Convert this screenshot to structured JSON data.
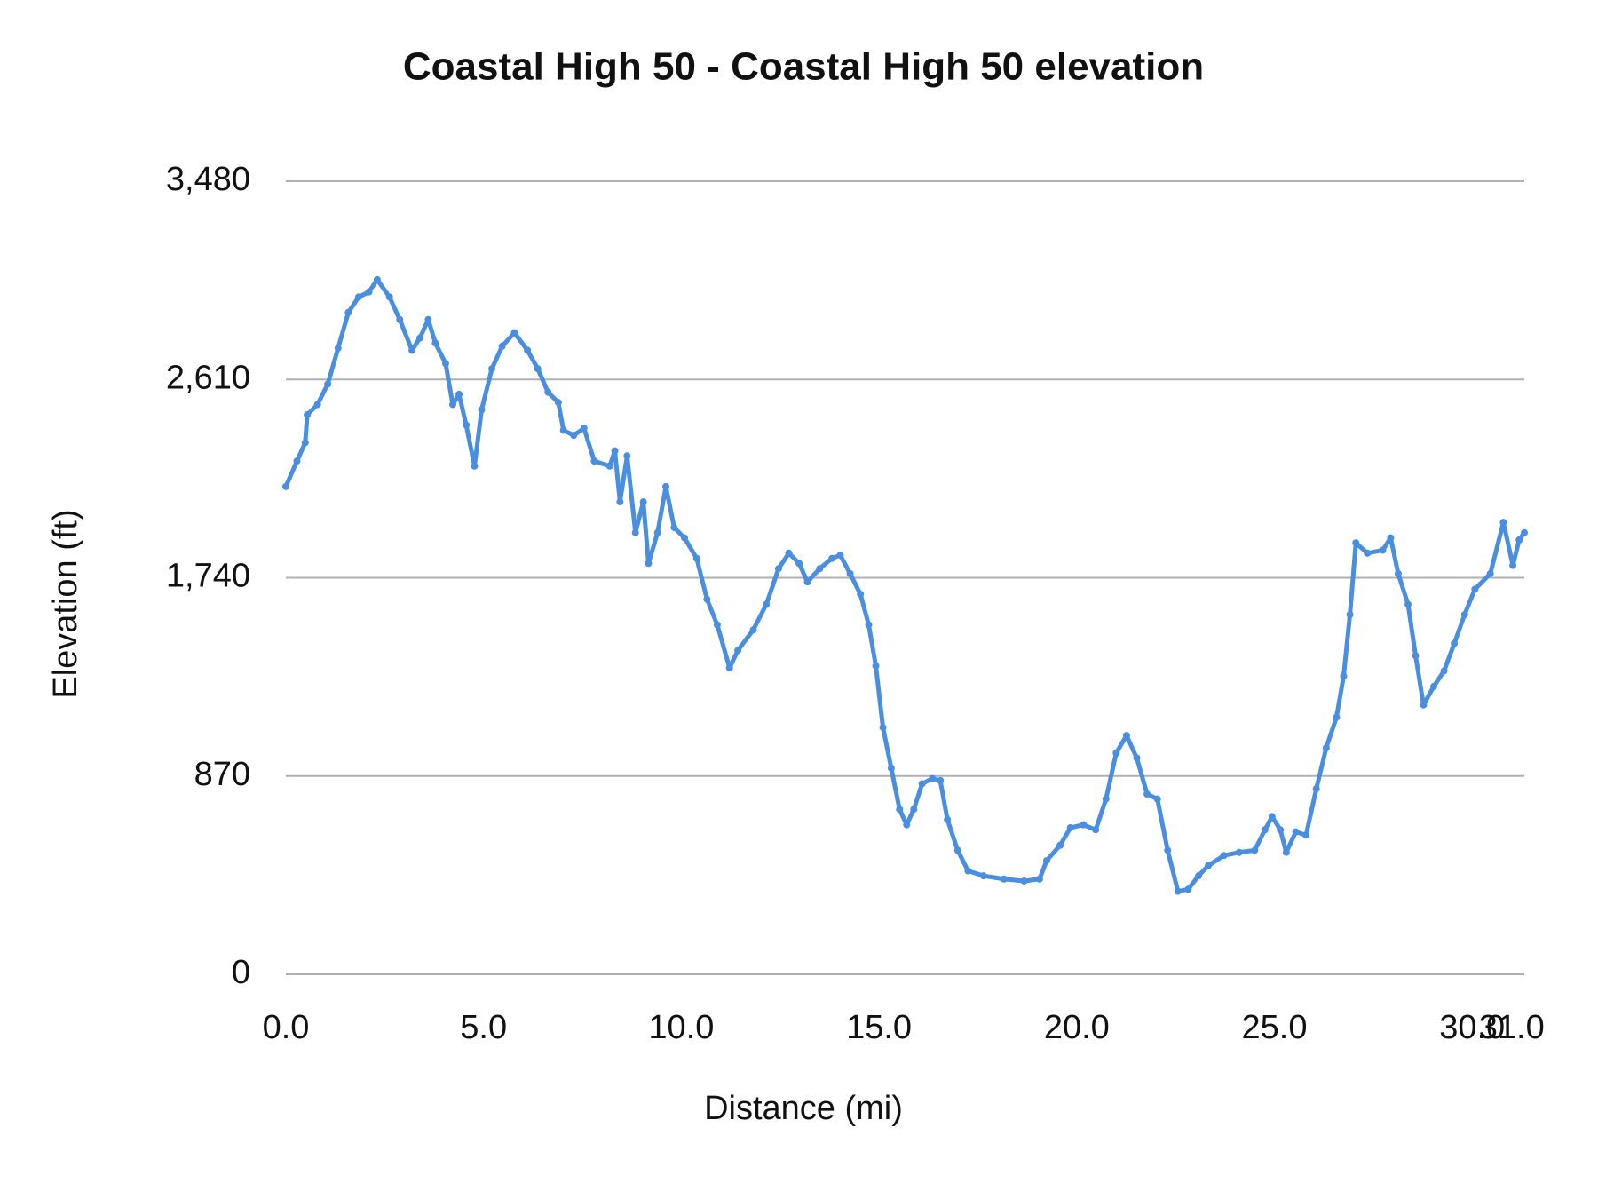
{
  "chart_data": {
    "type": "line",
    "title": "Coastal High 50 - Coastal High 50 elevation",
    "x_label": "Distance (mi)",
    "y_label": "Elevation (ft)",
    "x": [
      0,
      0.28,
      0.49,
      0.54,
      0.8,
      1.06,
      1.32,
      1.58,
      1.84,
      2.1,
      2.31,
      2.62,
      2.88,
      3.19,
      3.39,
      3.6,
      3.78,
      4.04,
      4.22,
      4.38,
      4.56,
      4.77,
      4.95,
      5.21,
      5.47,
      5.78,
      6.11,
      6.37,
      6.63,
      6.89,
      7.02,
      7.28,
      7.54,
      7.8,
      8.19,
      8.32,
      8.45,
      8.63,
      8.84,
      9.04,
      9.17,
      9.4,
      9.61,
      9.82,
      10.08,
      10.39,
      10.65,
      10.91,
      11.22,
      11.43,
      11.82,
      12.15,
      12.46,
      12.72,
      12.98,
      13.19,
      13.5,
      13.81,
      14.02,
      14.27,
      14.53,
      14.74,
      14.92,
      15.1,
      15.31,
      15.52,
      15.7,
      15.88,
      16.09,
      16.35,
      16.55,
      16.73,
      16.99,
      17.25,
      17.64,
      18.16,
      18.67,
      19.06,
      19.24,
      19.58,
      19.84,
      20.17,
      20.48,
      20.74,
      21.0,
      21.26,
      21.52,
      21.78,
      22.04,
      22.3,
      22.56,
      22.82,
      23.08,
      23.33,
      23.72,
      24.11,
      24.5,
      24.76,
      24.94,
      25.15,
      25.3,
      25.54,
      25.8,
      26.06,
      26.31,
      26.57,
      26.75,
      26.91,
      27.06,
      27.35,
      27.74,
      27.94,
      28.13,
      28.38,
      28.57,
      28.77,
      29.03,
      29.29,
      29.55,
      29.81,
      30.07,
      30.46,
      30.79,
      31.03,
      31.19,
      31.32
    ],
    "series": [
      {
        "name": "Coastal High 50",
        "color": "#4a8ee0",
        "values": [
          2140,
          2252,
          2333,
          2455,
          2500,
          2590,
          2747,
          2904,
          2972,
          2994,
          3048,
          2972,
          2873,
          2738,
          2792,
          2873,
          2770,
          2680,
          2500,
          2545,
          2410,
          2230,
          2477,
          2657,
          2756,
          2815,
          2738,
          2657,
          2554,
          2509,
          2387,
          2365,
          2396,
          2252,
          2230,
          2297,
          2073,
          2275,
          1938,
          2073,
          1803,
          1938,
          2140,
          1960,
          1915,
          1825,
          1646,
          1533,
          1344,
          1421,
          1511,
          1623,
          1780,
          1848,
          1803,
          1722,
          1780,
          1825,
          1839,
          1758,
          1668,
          1533,
          1353,
          1083,
          904,
          724,
          656,
          724,
          836,
          859,
          850,
          679,
          544,
          454,
          432,
          418,
          409,
          418,
          499,
          566,
          643,
          656,
          634,
          769,
          971,
          1048,
          949,
          791,
          769,
          544,
          364,
          373,
          432,
          477,
          521,
          535,
          544,
          634,
          692,
          634,
          535,
          625,
          611,
          814,
          994,
          1128,
          1308,
          1578,
          1893,
          1848,
          1861,
          1915,
          1758,
          1623,
          1398,
          1182,
          1263,
          1331,
          1452,
          1578,
          1690,
          1758,
          1983,
          1794,
          1906,
          1938
        ]
      }
    ],
    "xlim": [
      0,
      31.32
    ],
    "xticks": [
      {
        "value": 0,
        "label": "0.0"
      },
      {
        "value": 5,
        "label": "5.0"
      },
      {
        "value": 10,
        "label": "10.0"
      },
      {
        "value": 15,
        "label": "15.0"
      },
      {
        "value": 20,
        "label": "20.0"
      },
      {
        "value": 25,
        "label": "25.0"
      },
      {
        "value": 30,
        "label": "30.0"
      },
      {
        "value": 31,
        "label": "31.0"
      }
    ],
    "ylim": [
      0,
      3480
    ],
    "yticks": [
      0,
      {
        "value": 870,
        "label": "870"
      },
      {
        "value": 1740,
        "label": "1,740"
      },
      {
        "value": 2610,
        "label": "2,610"
      },
      {
        "value": 3480,
        "label": "3,480"
      }
    ],
    "grid": true
  }
}
